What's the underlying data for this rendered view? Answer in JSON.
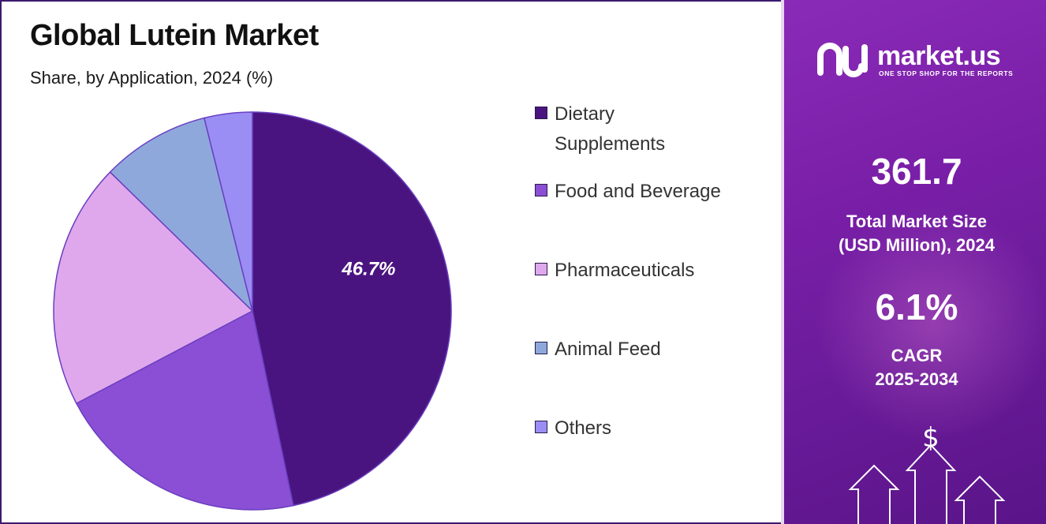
{
  "title": "Global Lutein Market",
  "subtitle": "Share, by Application, 2024 (%)",
  "chart_data": {
    "type": "pie",
    "title": "Global Lutein Market",
    "subtitle": "Share, by Application, 2024 (%)",
    "legend_position": "right",
    "categories": [
      "Dietary Supplements",
      "Food and Beverage",
      "Pharmaceuticals",
      "Animal Feed",
      "Others"
    ],
    "values": [
      46.7,
      20.6,
      20.0,
      8.8,
      3.9
    ],
    "colors": [
      "#4a1480",
      "#8b4fd6",
      "#e0a8ec",
      "#8fa8dc",
      "#9a8ef5"
    ],
    "data_labels": [
      "46.7%",
      "",
      "",
      "",
      ""
    ]
  },
  "legend": {
    "items": [
      {
        "label_line1": "Dietary",
        "label_line2": "Supplements",
        "color": "#4a1480"
      },
      {
        "label_line1": "Food and Beverage",
        "label_line2": "",
        "color": "#8b4fd6"
      },
      {
        "label_line1": "Pharmaceuticals",
        "label_line2": "",
        "color": "#e0a8ec"
      },
      {
        "label_line1": "Animal Feed",
        "label_line2": "",
        "color": "#8fa8dc"
      },
      {
        "label_line1": "Others",
        "label_line2": "",
        "color": "#9a8ef5"
      }
    ]
  },
  "panel": {
    "brand": "market.us",
    "tagline": "ONE STOP SHOP FOR THE REPORTS",
    "market_size_value": "361.7",
    "market_size_label_line1": "Total Market Size",
    "market_size_label_line2": "(USD Million), 2024",
    "cagr_value": "6.1%",
    "cagr_label_line1": "CAGR",
    "cagr_label_line2": "2025-2034",
    "currency_symbol": "$"
  }
}
